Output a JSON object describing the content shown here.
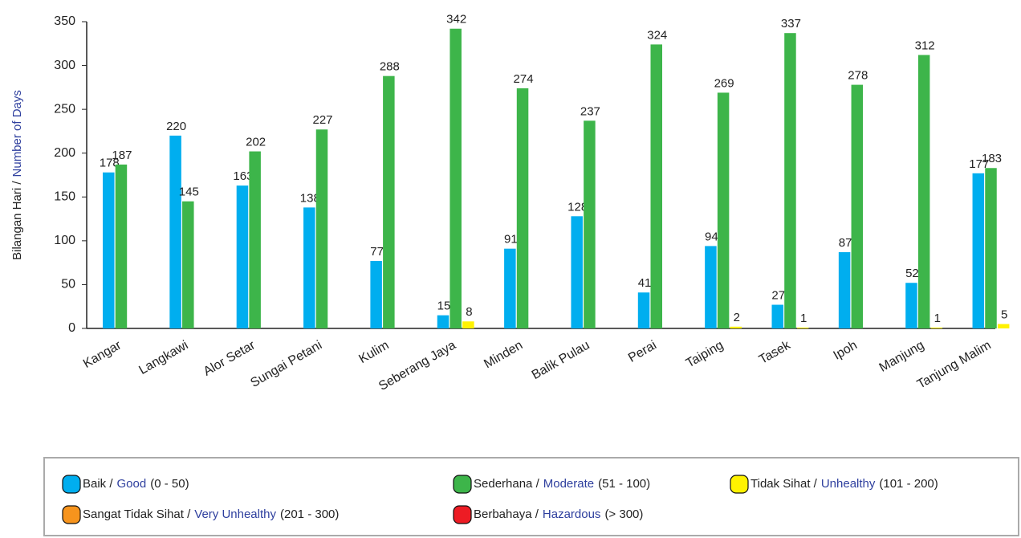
{
  "chart_data": {
    "type": "bar",
    "y_label": [
      "Bilangan Hari /",
      "Number of Days"
    ],
    "categories": [
      "Kangar",
      "Langkawi",
      "Alor Setar",
      "Sungai Petani",
      "Kulim",
      "Seberang Jaya",
      "Minden",
      "Balik Pulau",
      "Perai",
      "Taiping",
      "Tasek",
      "Ipoh",
      "Manjung",
      "Tanjung Malim"
    ],
    "series": [
      {
        "name": [
          "Baik /",
          "Good",
          "(0 - 50)"
        ],
        "color": "#00aeef",
        "values": [
          178,
          220,
          163,
          138,
          77,
          15,
          91,
          128,
          41,
          94,
          27,
          87,
          52,
          177
        ]
      },
      {
        "name": [
          "Sederhana /",
          "Moderate",
          "(51 - 100)"
        ],
        "color": "#3db54a",
        "values": [
          187,
          145,
          202,
          227,
          288,
          342,
          274,
          237,
          324,
          269,
          337,
          278,
          312,
          183
        ]
      },
      {
        "name": [
          "Tidak Sihat /",
          "Unhealthy",
          "(101 - 200)"
        ],
        "color": "#fff200",
        "values": [
          null,
          null,
          null,
          null,
          null,
          8,
          null,
          null,
          null,
          2,
          1,
          null,
          1,
          5
        ]
      },
      {
        "name": [
          "Sangat Tidak Sihat /",
          "Very Unhealthy",
          "(201 - 300)"
        ],
        "color": "#f7941d",
        "values": [
          null,
          null,
          null,
          null,
          null,
          null,
          null,
          null,
          null,
          null,
          null,
          null,
          null,
          null
        ]
      },
      {
        "name": [
          "Berbahaya /",
          "Hazardous",
          "(> 300)"
        ],
        "color": "#ed1c24",
        "values": [
          null,
          null,
          null,
          null,
          null,
          null,
          null,
          null,
          null,
          null,
          null,
          null,
          null,
          null
        ]
      }
    ],
    "ylim": [
      0,
      350
    ],
    "yticks": [
      0,
      50,
      100,
      150,
      200,
      250,
      300,
      350
    ],
    "grid": false,
    "legend": "bottom"
  }
}
